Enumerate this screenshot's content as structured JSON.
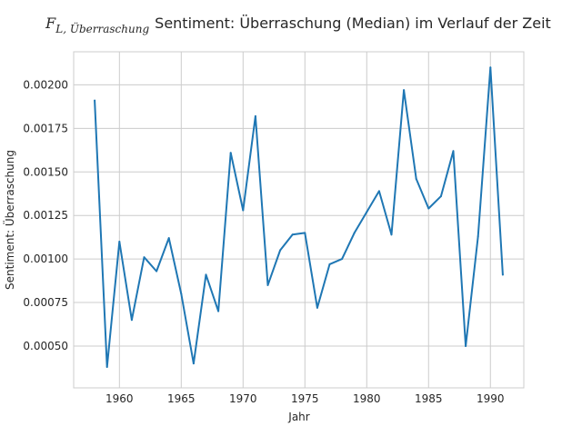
{
  "chart_data": {
    "type": "line",
    "title_math_base": "F",
    "title_math_subscript": "L, Überraschung",
    "title": "Sentiment: Überraschung (Median) im Verlauf der Zeit",
    "xlabel": "Jahr",
    "ylabel": "Sentiment: Überraschung",
    "xlim": [
      1956.3,
      1992.7
    ],
    "ylim": [
      0.00026,
      0.00219
    ],
    "x_ticks": [
      1960,
      1965,
      1970,
      1975,
      1980,
      1985,
      1990
    ],
    "y_ticks": [
      0.0005,
      0.00075,
      0.001,
      0.00125,
      0.0015,
      0.00175,
      0.002
    ],
    "y_tick_labels": [
      "0.00050",
      "0.00075",
      "0.00100",
      "0.00125",
      "0.00150",
      "0.00175",
      "0.00200"
    ],
    "grid": true,
    "line_color": "#1f77b4",
    "series": [
      {
        "x": [
          1958,
          1959,
          1960,
          1961,
          1962,
          1963,
          1964,
          1965,
          1966,
          1967,
          1968,
          1969,
          1970,
          1971,
          1972,
          1973,
          1974,
          1975,
          1976,
          1977,
          1978,
          1979,
          1980,
          1981,
          1982,
          1983,
          1984,
          1985,
          1986,
          1987,
          1988,
          1989,
          1990,
          1991
        ],
        "y": [
          0.00191,
          0.00038,
          0.0011,
          0.00065,
          0.00101,
          0.00093,
          0.00112,
          0.0008,
          0.0004,
          0.00091,
          0.0007,
          0.00161,
          0.00128,
          0.00182,
          0.00085,
          0.00105,
          0.00114,
          0.00115,
          0.00072,
          0.00097,
          0.001,
          0.00115,
          0.00127,
          0.00139,
          0.00114,
          0.00197,
          0.00146,
          0.00129,
          0.00136,
          0.00162,
          0.0005,
          0.00113,
          0.0021,
          0.00091
        ]
      }
    ]
  }
}
